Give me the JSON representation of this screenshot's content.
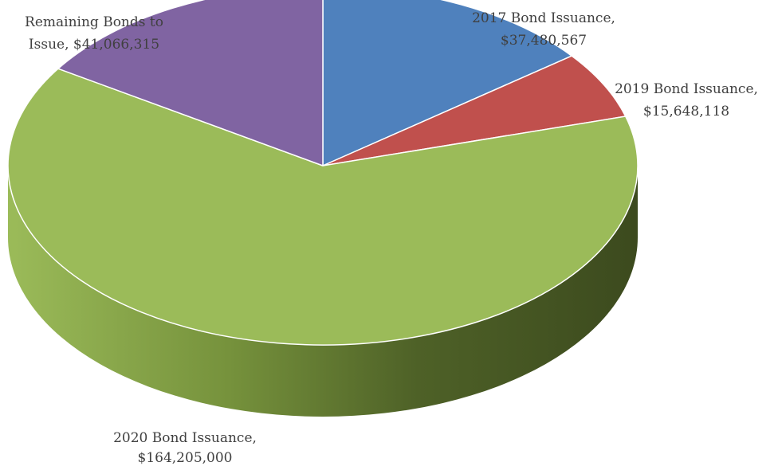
{
  "chart_data": {
    "type": "pie",
    "style": "3d",
    "title": "",
    "categories": [
      "2017 Bond Issuance",
      "2019 Bond Issuance",
      "2020 Bond Issuance",
      "Remaining Bonds to Issue"
    ],
    "values": [
      37480567,
      15648118,
      164205000,
      41066315
    ],
    "colors": [
      "#4f81bd",
      "#c0504d",
      "#9bbb59",
      "#8064a2"
    ],
    "data_labels": [
      {
        "line1": "2017 Bond Issuance,",
        "line2": "$37,480,567"
      },
      {
        "line1": "2019 Bond Issuance,",
        "line2": "$15,648,118"
      },
      {
        "line1": "2020 Bond Issuance,",
        "line2": "$164,205,000"
      },
      {
        "line1": "Remaining Bonds to",
        "line2": "Issue,  $41,066,315"
      }
    ],
    "legend": "none"
  }
}
